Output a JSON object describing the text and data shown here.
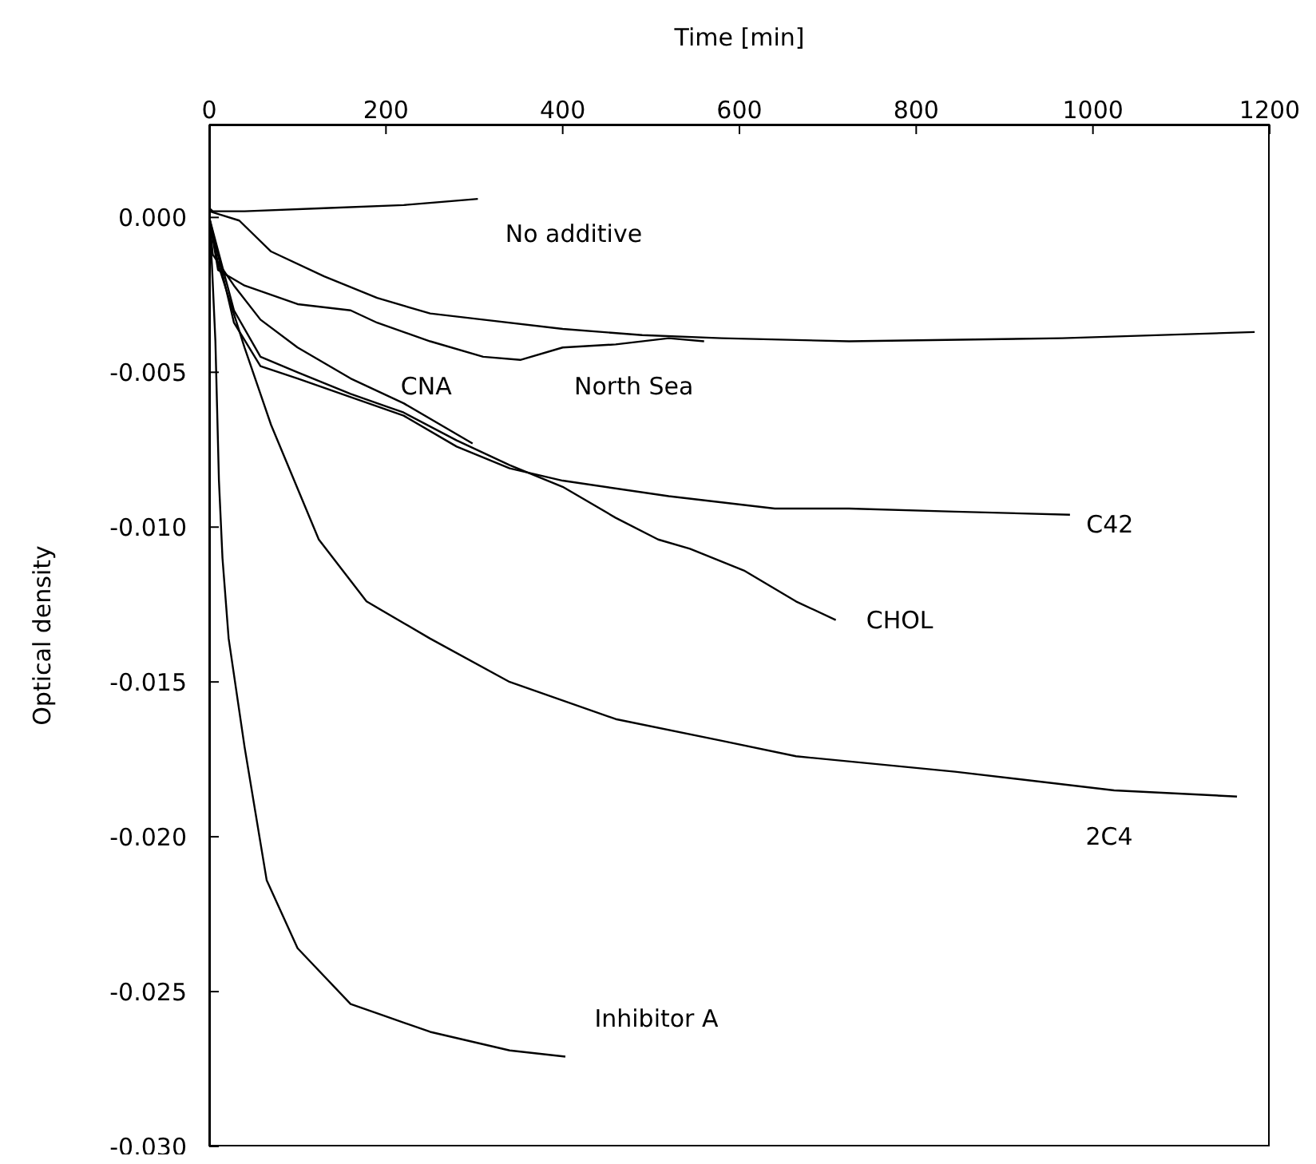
{
  "chart_data": {
    "type": "line",
    "xlabel": "Time [min]",
    "ylabel": "Optical density",
    "xlim": [
      0,
      1200
    ],
    "xticks": [
      0,
      200,
      400,
      600,
      800,
      1000,
      1200
    ],
    "ylim": [
      -0.03,
      0.003
    ],
    "yticks": [
      {
        "value": 0,
        "label": "0.000"
      },
      {
        "value": -0.005,
        "label": "-0.005"
      },
      {
        "value": -0.01,
        "label": "-0.010"
      },
      {
        "value": -0.015,
        "label": "-0.015"
      },
      {
        "value": -0.02,
        "label": "-0.020"
      },
      {
        "value": -0.025,
        "label": "-0.025"
      },
      {
        "value": -0.03,
        "label": "-0.030"
      }
    ],
    "grid": false,
    "legend": false,
    "marker": "none",
    "line_style": "solid",
    "series": [
      {
        "name": "No additive",
        "color": "#000000",
        "x": [
          0,
          4,
          40,
          130,
          220,
          304
        ],
        "values": [
          0.0003,
          0.0002,
          0.0002,
          0.0003,
          0.0004,
          0.0006
        ]
      },
      {
        "color": "#000000",
        "x": [
          0,
          34,
          70,
          130,
          190,
          250,
          310,
          400,
          490,
          580,
          724,
          965,
          1183
        ],
        "values": [
          0.0002,
          -0.0001,
          -0.0011,
          -0.0019,
          -0.0026,
          -0.0031,
          -0.0033,
          -0.0036,
          -0.0038,
          -0.0039,
          -0.004,
          -0.0039,
          -0.0037
        ]
      },
      {
        "name": "North Sea",
        "color": "#000000",
        "x": [
          0,
          10,
          40,
          100,
          160,
          190,
          250,
          310,
          352,
          400,
          460,
          520,
          560
        ],
        "values": [
          0,
          -0.0017,
          -0.0022,
          -0.0028,
          -0.003,
          -0.0034,
          -0.004,
          -0.0045,
          -0.0046,
          -0.0042,
          -0.0041,
          -0.0039,
          -0.004
        ]
      },
      {
        "name": "CNA",
        "color": "#000000",
        "x": [
          0,
          4,
          28,
          58,
          100,
          160,
          220,
          298
        ],
        "values": [
          0,
          -0.0012,
          -0.0022,
          -0.0033,
          -0.0042,
          -0.0052,
          -0.006,
          -0.0073
        ]
      },
      {
        "name": "C42",
        "color": "#000000",
        "x": [
          0,
          28,
          58,
          100,
          160,
          220,
          280,
          340,
          400,
          520,
          640,
          724,
          844,
          974
        ],
        "values": [
          0,
          -0.0034,
          -0.0048,
          -0.0052,
          -0.0058,
          -0.0064,
          -0.0074,
          -0.0081,
          -0.0085,
          -0.009,
          -0.0094,
          -0.0094,
          -0.0095,
          -0.0096
        ]
      },
      {
        "name": "CHOL",
        "color": "#000000",
        "x": [
          0,
          28,
          58,
          100,
          160,
          220,
          280,
          340,
          400,
          460,
          508,
          544,
          605,
          664,
          709
        ],
        "values": [
          0,
          -0.003,
          -0.0045,
          -0.005,
          -0.0057,
          -0.0063,
          -0.0072,
          -0.008,
          -0.0087,
          -0.0097,
          -0.0104,
          -0.0107,
          -0.0114,
          -0.0124,
          -0.013
        ]
      },
      {
        "name": "2C4",
        "color": "#000000",
        "x": [
          0,
          10,
          40,
          70,
          124,
          178,
          250,
          340,
          460,
          580,
          664,
          844,
          1024,
          1163
        ],
        "values": [
          0,
          -0.0015,
          -0.0042,
          -0.0067,
          -0.0104,
          -0.0124,
          -0.0136,
          -0.015,
          -0.0162,
          -0.0169,
          -0.0174,
          -0.0179,
          -0.0185,
          -0.0187
        ]
      },
      {
        "name": "Inhibitor A",
        "color": "#000000",
        "x": [
          0,
          3,
          7,
          11,
          15,
          22,
          40,
          65,
          100,
          160,
          250,
          340,
          403
        ],
        "values": [
          0,
          -0.0015,
          -0.004,
          -0.0085,
          -0.011,
          -0.0136,
          -0.0171,
          -0.0214,
          -0.0236,
          -0.0254,
          -0.0263,
          -0.0269,
          -0.0271
        ]
      }
    ]
  }
}
